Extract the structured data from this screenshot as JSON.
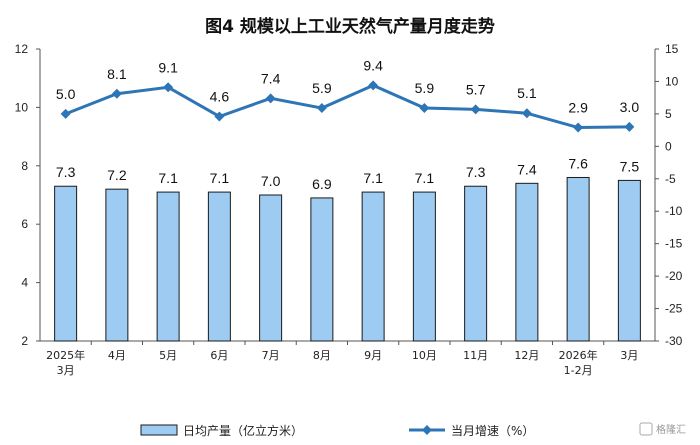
{
  "chart_data": {
    "type": "bar",
    "title": "图4  规模以上工业天然气产量月度走势",
    "categories": [
      "2025年\n3月",
      "4月",
      "5月",
      "6月",
      "7月",
      "8月",
      "9月",
      "10月",
      "11月",
      "12月",
      "2026年\n1-2月",
      "3月"
    ],
    "series": [
      {
        "name": "日均产量（亿立方米）",
        "type": "bar",
        "axis": "left",
        "values": [
          7.3,
          7.2,
          7.1,
          7.1,
          7.0,
          6.9,
          7.1,
          7.1,
          7.3,
          7.4,
          7.6,
          7.5
        ],
        "color": "#9dcbf2",
        "border": "#1a1a1a"
      },
      {
        "name": "当月增速（%）",
        "type": "line",
        "axis": "right",
        "values": [
          5.0,
          8.1,
          9.1,
          4.6,
          7.4,
          5.9,
          9.4,
          5.9,
          5.7,
          5.1,
          2.9,
          3.0
        ],
        "color": "#2e75b6"
      }
    ],
    "y_left": {
      "min": 2,
      "max": 12,
      "ticks": [
        2,
        4,
        6,
        8,
        10,
        12
      ]
    },
    "y_right": {
      "min": -30,
      "max": 15,
      "ticks": [
        -30,
        -25,
        -20,
        -15,
        -10,
        -5,
        0,
        5,
        10,
        15
      ]
    },
    "grid": false,
    "legend_position": "bottom"
  },
  "watermark": "格隆汇"
}
